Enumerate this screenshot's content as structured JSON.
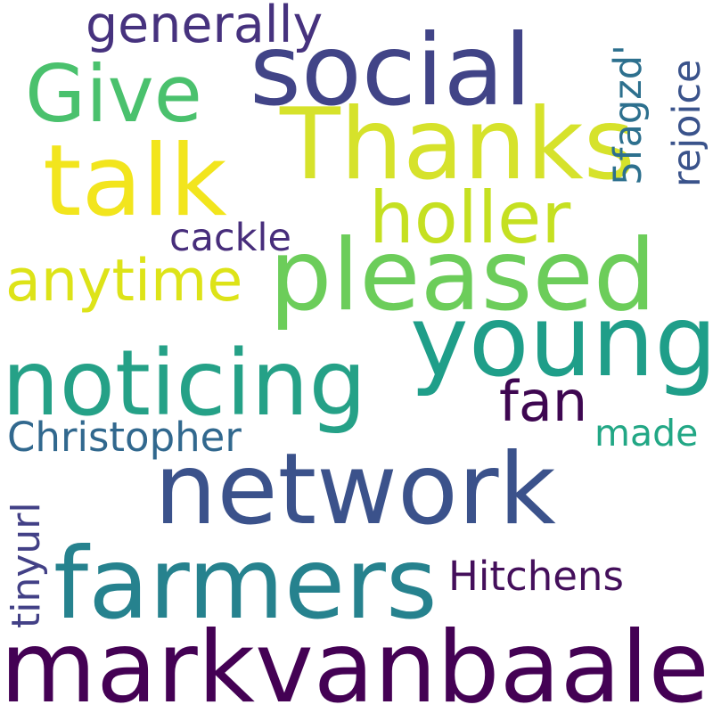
{
  "words": {
    "markvanbaale": {
      "text": "markvanbaale",
      "color": "#440154"
    },
    "network": {
      "text": "network",
      "color": "#3b528b"
    },
    "farmers": {
      "text": "farmers",
      "color": "#26828e"
    },
    "social": {
      "text": "social",
      "color": "#414487"
    },
    "thanks": {
      "text": "Thanks",
      "color": "#d6e22b"
    },
    "talk": {
      "text": "talk",
      "color": "#f2e51d"
    },
    "young": {
      "text": "young",
      "color": "#1f9e89"
    },
    "pleased": {
      "text": "pleased",
      "color": "#6ccd5a"
    },
    "noticing": {
      "text": "noticing",
      "color": "#25a187"
    },
    "give": {
      "text": "Give",
      "color": "#4ac16d"
    },
    "holler": {
      "text": "holler",
      "color": "#c5e021"
    },
    "anytime": {
      "text": "anytime",
      "color": "#dde318"
    },
    "generally": {
      "text": "generally",
      "color": "#46327e"
    },
    "fan": {
      "text": "fan",
      "color": "#3e0751"
    },
    "christopher": {
      "text": "Christopher",
      "color": "#31688e"
    },
    "hitchens": {
      "text": "Hitchens",
      "color": "#440f5b"
    },
    "cackle": {
      "text": "cackle",
      "color": "#472d7b"
    },
    "made": {
      "text": "made",
      "color": "#22a785"
    },
    "tinyurl": {
      "text": "tinyurl",
      "color": "#424086"
    },
    "fagzd": {
      "text": "5fagzd'",
      "color": "#2d708e"
    },
    "rejoice": {
      "text": "rejoice",
      "color": "#3a538b"
    }
  }
}
